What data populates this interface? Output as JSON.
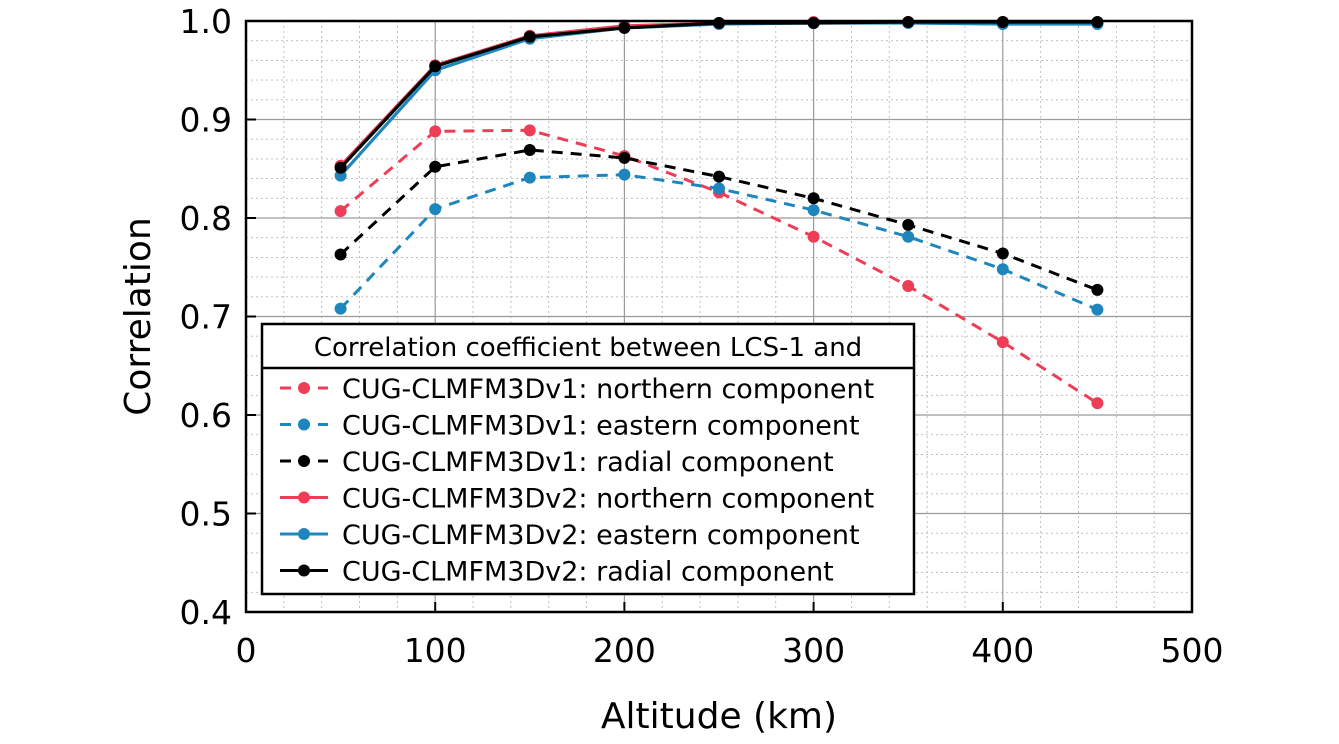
{
  "chart_data": {
    "type": "line",
    "xlabel": "Altitude (km)",
    "ylabel": "Correlation",
    "xlim": [
      0,
      500
    ],
    "ylim": [
      0.4,
      1.0
    ],
    "xticks": [
      "0",
      "100",
      "200",
      "300",
      "400",
      "500"
    ],
    "yticks": [
      "0.4",
      "0.5",
      "0.6",
      "0.7",
      "0.8",
      "0.9",
      "1.0"
    ],
    "grid": true,
    "minor_grid": true,
    "legend_position": "lower-left",
    "legend_title": "Correlation coefficient between LCS-1 and",
    "x": [
      50,
      100,
      150,
      200,
      250,
      300,
      350,
      400,
      450
    ],
    "series": [
      {
        "name": "CUG-CLMFM3Dv1: northern component",
        "color": "#ee3e57",
        "style": "dashed",
        "values": [
          0.807,
          0.888,
          0.889,
          0.863,
          0.826,
          0.781,
          0.731,
          0.674,
          0.612
        ]
      },
      {
        "name": "CUG-CLMFM3Dv1: eastern component",
        "color": "#1f86bd",
        "style": "dashed",
        "values": [
          0.708,
          0.809,
          0.841,
          0.844,
          0.83,
          0.808,
          0.781,
          0.748,
          0.707
        ]
      },
      {
        "name": "CUG-CLMFM3Dv1: radial component",
        "color": "#000000",
        "style": "dashed",
        "values": [
          0.763,
          0.852,
          0.869,
          0.861,
          0.842,
          0.82,
          0.793,
          0.764,
          0.727
        ]
      },
      {
        "name": "CUG-CLMFM3Dv2: northern component",
        "color": "#ee3e57",
        "style": "solid",
        "values": [
          0.853,
          0.955,
          0.985,
          0.995,
          0.998,
          0.999,
          0.999,
          0.999,
          0.998
        ]
      },
      {
        "name": "CUG-CLMFM3Dv2: eastern component",
        "color": "#1f86bd",
        "style": "solid",
        "values": [
          0.843,
          0.95,
          0.982,
          0.993,
          0.997,
          0.998,
          0.998,
          0.997,
          0.997
        ]
      },
      {
        "name": "CUG-CLMFM3Dv2: radial component",
        "color": "#000000",
        "style": "solid",
        "values": [
          0.851,
          0.954,
          0.984,
          0.993,
          0.998,
          0.998,
          0.999,
          0.999,
          0.999
        ]
      }
    ]
  }
}
